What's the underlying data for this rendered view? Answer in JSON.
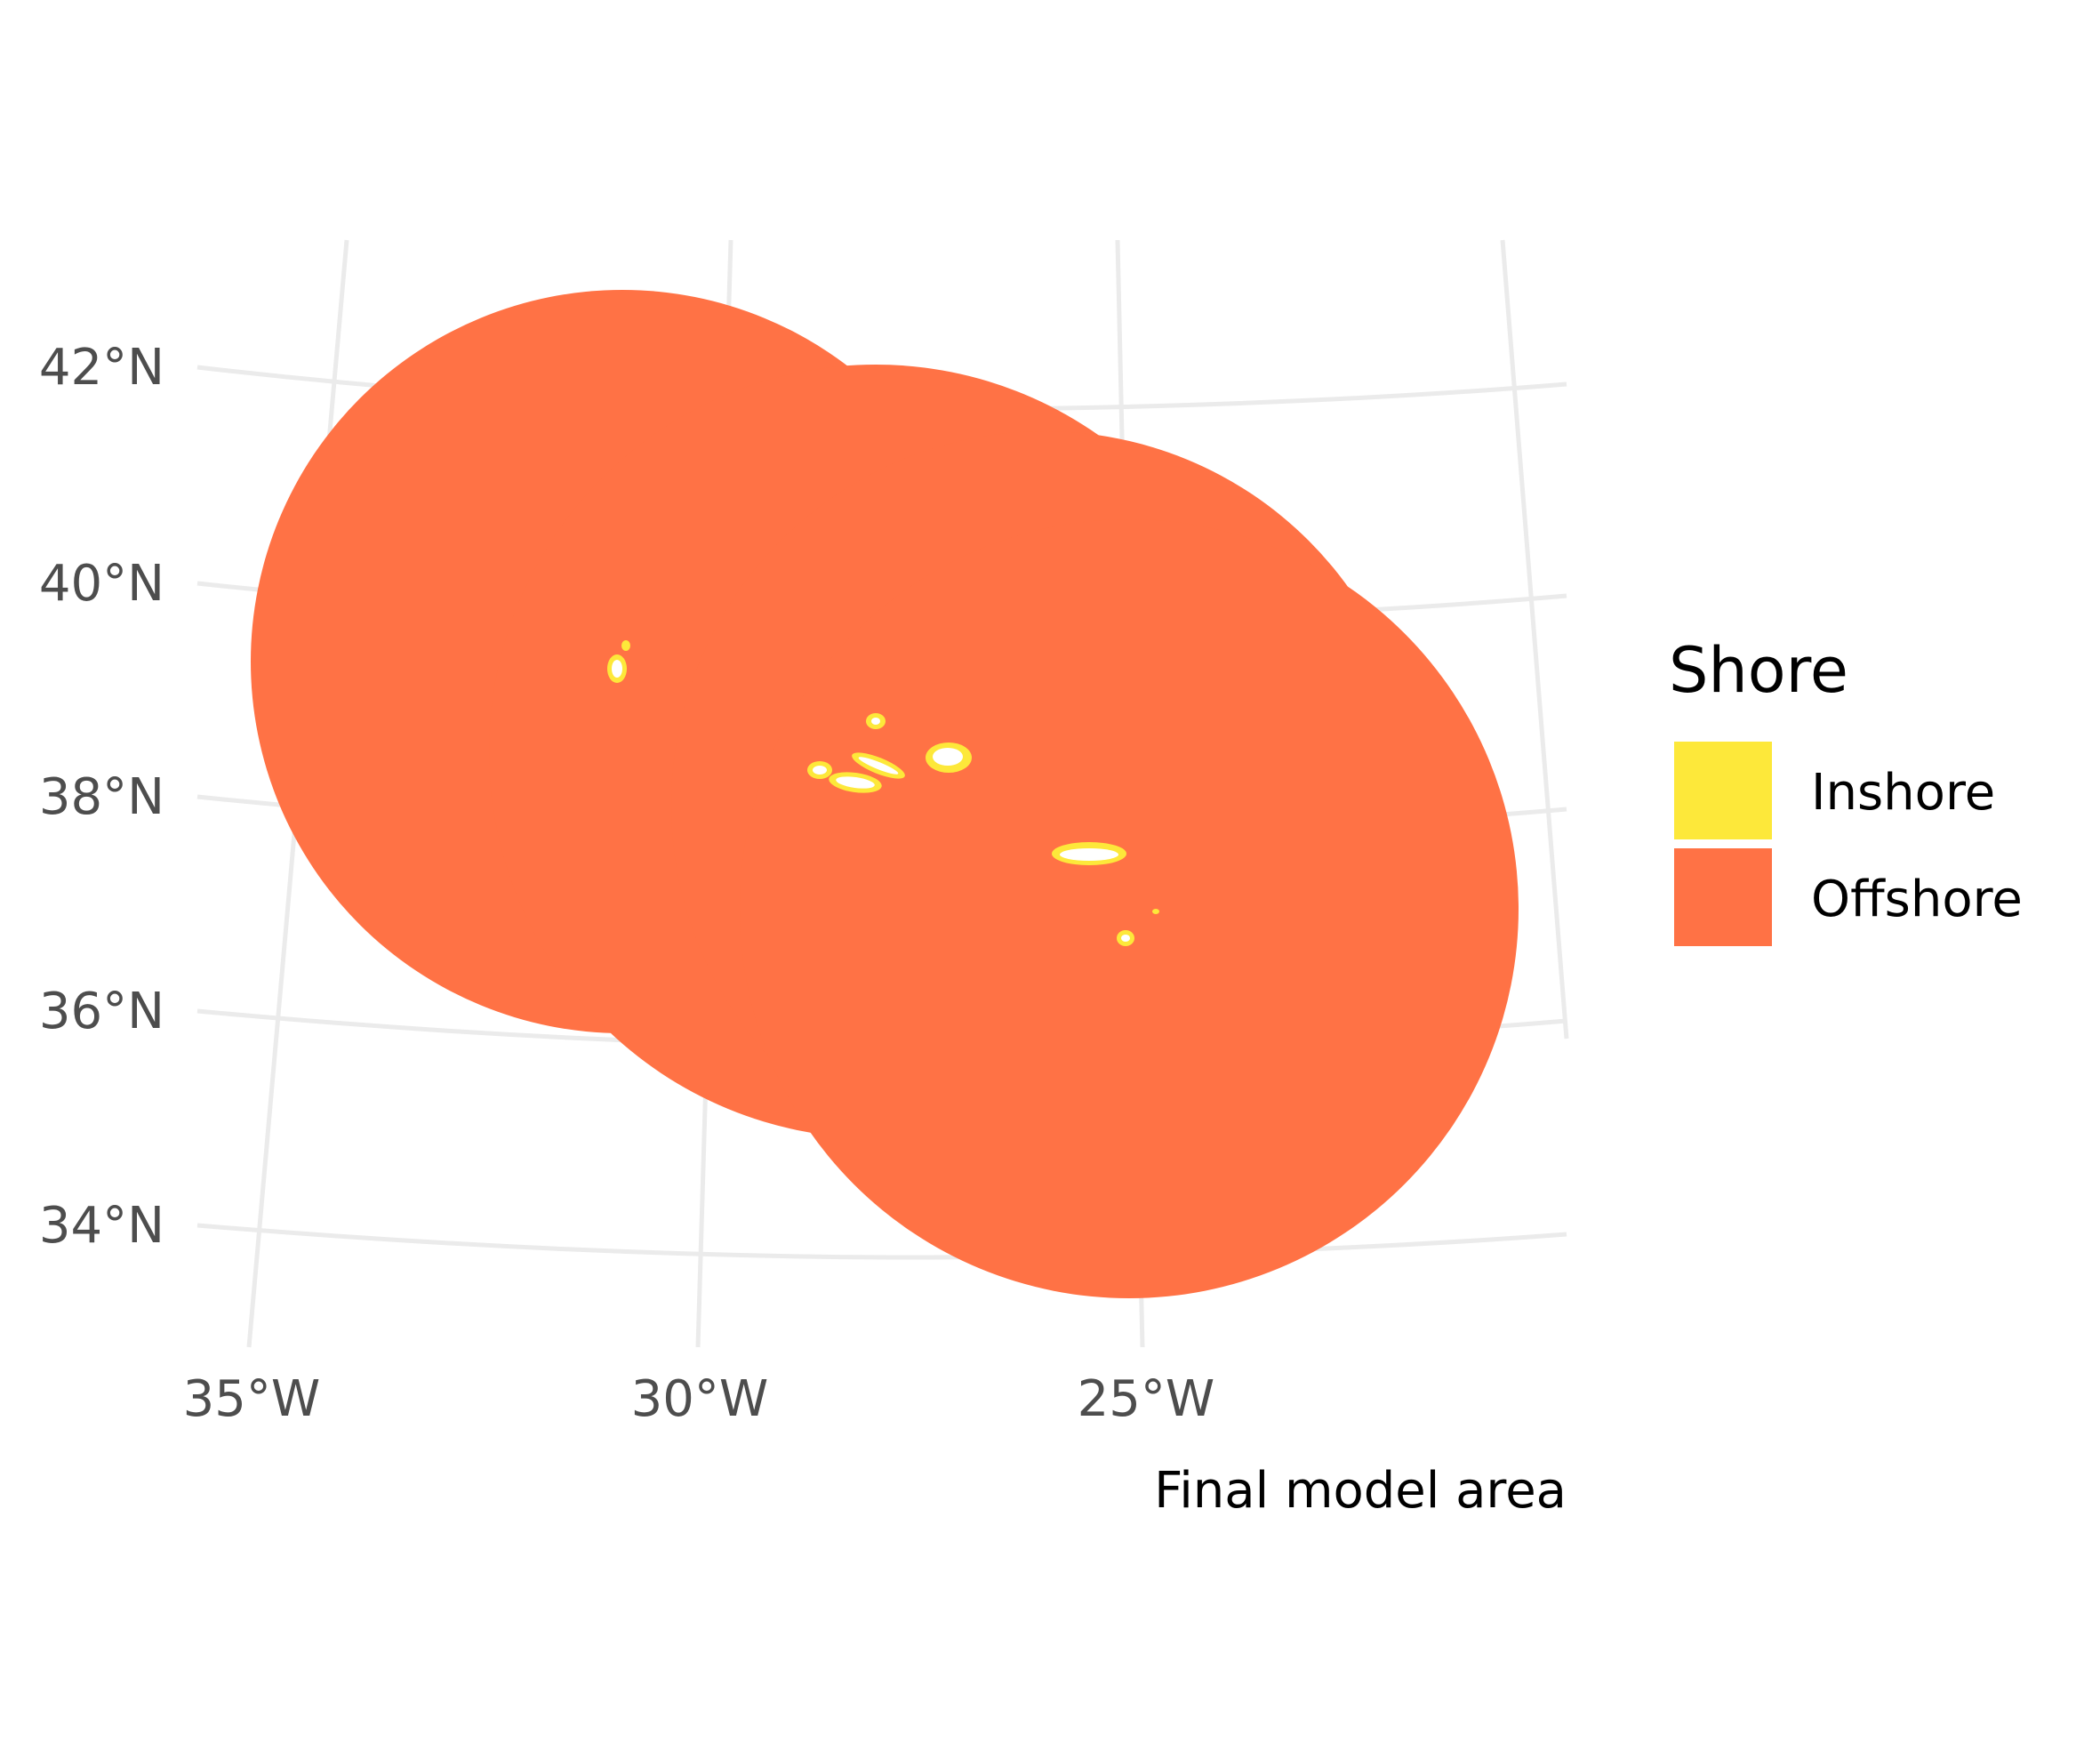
{
  "map": {
    "graticule": {
      "latitude_labels": [
        "42°N",
        "40°N",
        "38°N",
        "36°N",
        "34°N"
      ],
      "longitude_labels": [
        "35°W",
        "30°W",
        "25°W"
      ]
    },
    "caption": "Final model area"
  },
  "legend": {
    "title": "Shore",
    "items": [
      {
        "label": "Inshore",
        "color": "#FDE83A"
      },
      {
        "label": "Offshore",
        "color": "#FF7245"
      }
    ]
  },
  "colors": {
    "background": "#FFFFFF",
    "grid": "#EBEBEB",
    "island_land": "#FFFFFF",
    "inshore": "#FDE83A",
    "offshore": "#FF7245"
  }
}
